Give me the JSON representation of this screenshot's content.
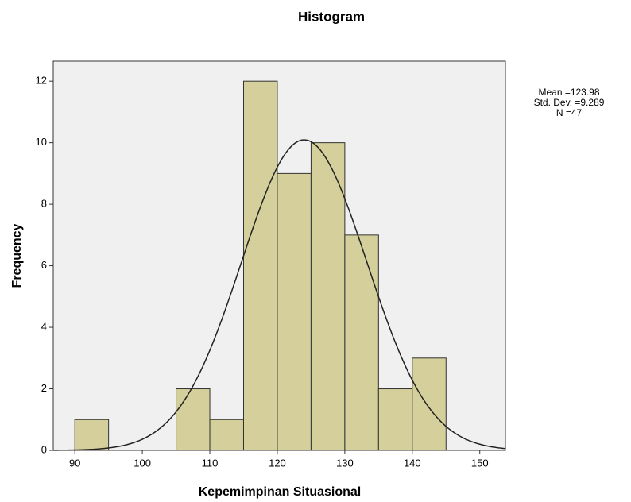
{
  "chart_data": {
    "type": "histogram",
    "title": "Histogram",
    "x_label": "Kepemimpinan Situasional",
    "y_label": "Frequency",
    "bins": [
      90,
      95,
      100,
      105,
      110,
      115,
      120,
      125,
      130,
      135,
      140,
      145
    ],
    "values": [
      1,
      0,
      0,
      2,
      1,
      12,
      9,
      10,
      7,
      2,
      3
    ],
    "color": "#d4cf9b",
    "edge_color": "#333333",
    "background": "#f0f0f0",
    "xlim": [
      86.8,
      153.8
    ],
    "xticks": [
      90,
      100,
      110,
      120,
      130,
      140,
      150
    ],
    "ylim": [
      0,
      12.65
    ],
    "yticks": [
      0,
      2,
      4,
      6,
      8,
      10,
      12
    ],
    "curve": {
      "mean": 123.98,
      "std_dev": 9.289,
      "n": 47
    },
    "curve_labels": [
      "Mean =123.98",
      "Std. Dev. =9.289",
      "N =47"
    ]
  }
}
